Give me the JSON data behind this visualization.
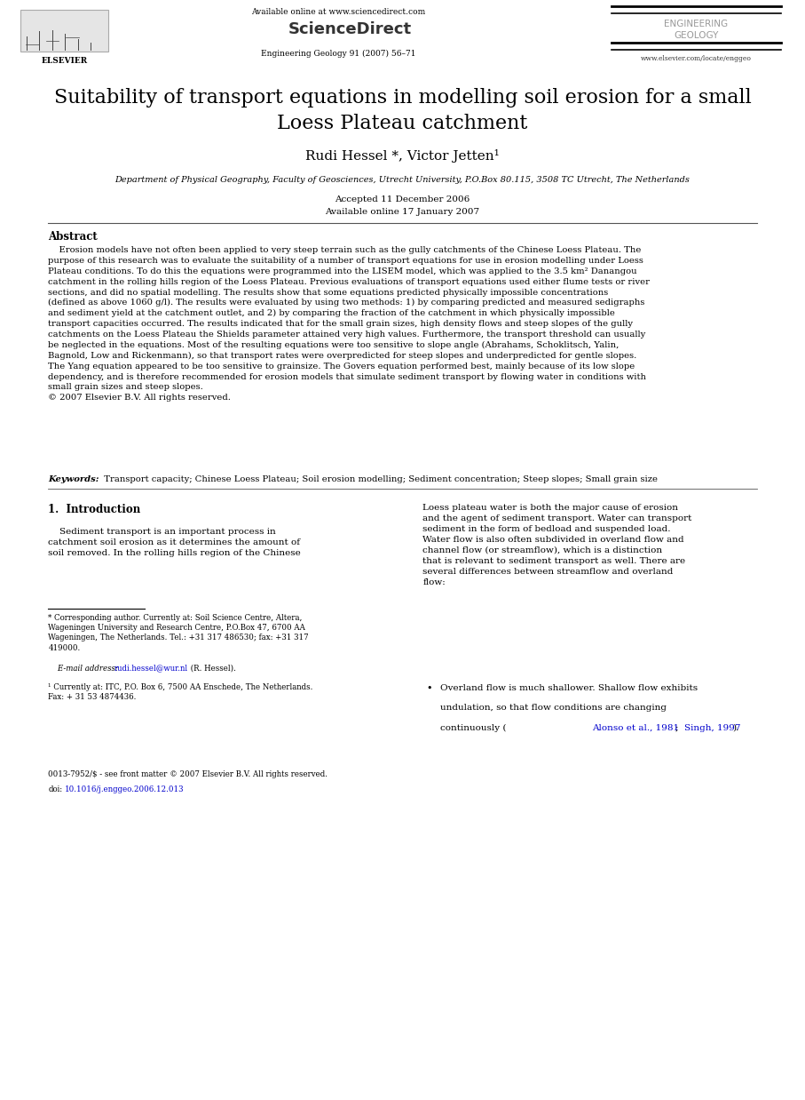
{
  "bg_color": "#ffffff",
  "page_width": 9.07,
  "page_height": 12.38,
  "dpi": 100,
  "header_line1": "Available online at www.sciencedirect.com",
  "header_sciencedirect": "ScienceDirect",
  "header_journal": "Engineering Geology 91 (2007) 56–71",
  "header_eng_geo": "ENGINEERING\nGEOLOGY",
  "header_url": "www.elsevier.com/locate/enggeo",
  "header_elsevier": "ELSEVIER",
  "title": "Suitability of transport equations in modelling soil erosion for a small\nLoess Plateau catchment",
  "authors": "Rudi Hessel *, Victor Jetten¹",
  "affiliation": "Department of Physical Geography, Faculty of Geosciences, Utrecht University, P.O.Box 80.115, 3508 TC Utrecht, The Netherlands",
  "dates": "Accepted 11 December 2006\nAvailable online 17 January 2007",
  "abstract_title": "Abstract",
  "abstract_body": "    Erosion models have not often been applied to very steep terrain such as the gully catchments of the Chinese Loess Plateau. The\npurpose of this research was to evaluate the suitability of a number of transport equations for use in erosion modelling under Loess\nPlateau conditions. To do this the equations were programmed into the LISEM model, which was applied to the 3.5 km² Danangou\ncatchment in the rolling hills region of the Loess Plateau. Previous evaluations of transport equations used either flume tests or river\nsections, and did no spatial modelling. The results show that some equations predicted physically impossible concentrations\n(defined as above 1060 g/l). The results were evaluated by using two methods: 1) by comparing predicted and measured sedigraphs\nand sediment yield at the catchment outlet, and 2) by comparing the fraction of the catchment in which physically impossible\ntransport capacities occurred. The results indicated that for the small grain sizes, high density flows and steep slopes of the gully\ncatchments on the Loess Plateau the Shields parameter attained very high values. Furthermore, the transport threshold can usually\nbe neglected in the equations. Most of the resulting equations were too sensitive to slope angle (Abrahams, Schoklitsch, Yalin,\nBagnold, Low and Rickenmann), so that transport rates were overpredicted for steep slopes and underpredicted for gentle slopes.\nThe Yang equation appeared to be too sensitive to grainsize. The Govers equation performed best, mainly because of its low slope\ndependency, and is therefore recommended for erosion models that simulate sediment transport by flowing water in conditions with\nsmall grain sizes and steep slopes.\n© 2007 Elsevier B.V. All rights reserved.",
  "keywords_label": "Keywords:",
  "keywords_text": "  Transport capacity; Chinese Loess Plateau; Soil erosion modelling; Sediment concentration; Steep slopes; Small grain size",
  "section1_title": "1.  Introduction",
  "section1_left": "    Sediment transport is an important process in\ncatchment soil erosion as it determines the amount of\nsoil removed. In the rolling hills region of the Chinese",
  "section1_right": "Loess plateau water is both the major cause of erosion\nand the agent of sediment transport. Water can transport\nsediment in the form of bedload and suspended load.\nWater flow is also often subdivided in overland flow and\nchannel flow (or streamflow), which is a distinction\nthat is relevant to sediment transport as well. There are\nseveral differences between streamflow and overland\nflow:",
  "footnote_star": "* Corresponding author. Currently at: Soil Science Centre, Altera,\nWageningen University and Research Centre, P.O.Box 47, 6700 AA\nWageningen, The Netherlands. Tel.: +31 317 486530; fax: +31 317\n419000.",
  "footnote_email_label": "    E-mail address: ",
  "footnote_email": "rudi.hessel@wur.nl",
  "footnote_email_suffix": " (R. Hessel).",
  "footnote_1": "¹ Currently at: ITC, P.O. Box 6, 7500 AA Enschede, The Netherlands.\nFax: + 31 53 4874436.",
  "footnote_bottom1": "0013-7952/$ - see front matter © 2007 Elsevier B.V. All rights reserved.",
  "footnote_bottom2": "doi:",
  "footnote_doi": "10.1016/j.enggeo.2006.12.013",
  "bullet_text1": "Overland flow is much shallower. Shallow flow exhibits\nundulation, so that flow conditions are changing\ncontinuously (",
  "bullet_link1": "Alonso et al., 1981",
  "bullet_sep": "; ",
  "bullet_link2": "Singh, 1997",
  "bullet_end": ").",
  "link_color": "#0000cc"
}
